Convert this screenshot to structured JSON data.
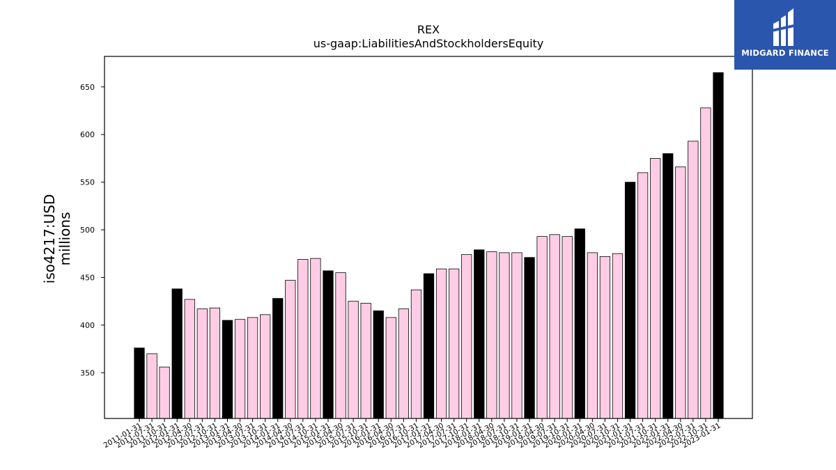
{
  "brand": {
    "name": "MIDGARD FINANCE",
    "logo_bg": "#2b56ad",
    "logo_icon": "midgard-logo-icon"
  },
  "chart_data": {
    "type": "bar",
    "title": "REX",
    "subtitle": "us-gaap:LiabilitiesAndStockholdersEquity",
    "ylabel": "iso4217:USD",
    "ylabel_unit": "millions",
    "xlabel": "",
    "ylim": [
      302,
      682
    ],
    "yticks": [
      350,
      400,
      450,
      500,
      550,
      600,
      650
    ],
    "grid": false,
    "colors": {
      "fiscal_year_end": "#000000",
      "quarter": "#ffcce6",
      "edge": "#000000"
    },
    "categories": [
      "2011-01-31",
      "2011-07-31",
      "2011-10-31",
      "2012-01-31",
      "2012-04-30",
      "2012-07-31",
      "2012-10-31",
      "2013-01-31",
      "2013-04-30",
      "2013-07-31",
      "2013-10-31",
      "2014-01-31",
      "2014-04-30",
      "2014-07-31",
      "2014-10-31",
      "2015-01-31",
      "2015-04-30",
      "2015-07-31",
      "2015-10-31",
      "2016-01-31",
      "2016-04-30",
      "2016-07-31",
      "2016-10-31",
      "2017-01-31",
      "2017-04-30",
      "2017-07-31",
      "2017-10-31",
      "2018-01-31",
      "2018-04-30",
      "2018-07-31",
      "2018-10-31",
      "2019-01-31",
      "2019-04-30",
      "2019-07-31",
      "2019-10-31",
      "2020-01-31",
      "2020-04-30",
      "2020-07-31",
      "2020-10-31",
      "2021-01-31",
      "2021-07-31",
      "2021-10-31",
      "2022-01-31",
      "2022-04-30",
      "2022-07-31",
      "2022-10-31",
      "2023-01-31"
    ],
    "values": [
      376,
      370,
      356,
      438,
      427,
      417,
      418,
      405,
      406,
      408,
      411,
      428,
      447,
      469,
      470,
      457,
      455,
      425,
      423,
      415,
      408,
      417,
      437,
      454,
      459,
      459,
      474,
      479,
      477,
      476,
      476,
      471,
      493,
      495,
      493,
      501,
      476,
      472,
      475,
      550,
      560,
      575,
      580,
      566,
      593,
      628,
      665
    ],
    "fiscal_year_end": [
      true,
      false,
      false,
      true,
      false,
      false,
      false,
      true,
      false,
      false,
      false,
      true,
      false,
      false,
      false,
      true,
      false,
      false,
      false,
      true,
      false,
      false,
      false,
      true,
      false,
      false,
      false,
      true,
      false,
      false,
      false,
      true,
      false,
      false,
      false,
      true,
      false,
      false,
      false,
      true,
      false,
      false,
      true,
      false,
      false,
      false,
      true
    ]
  }
}
